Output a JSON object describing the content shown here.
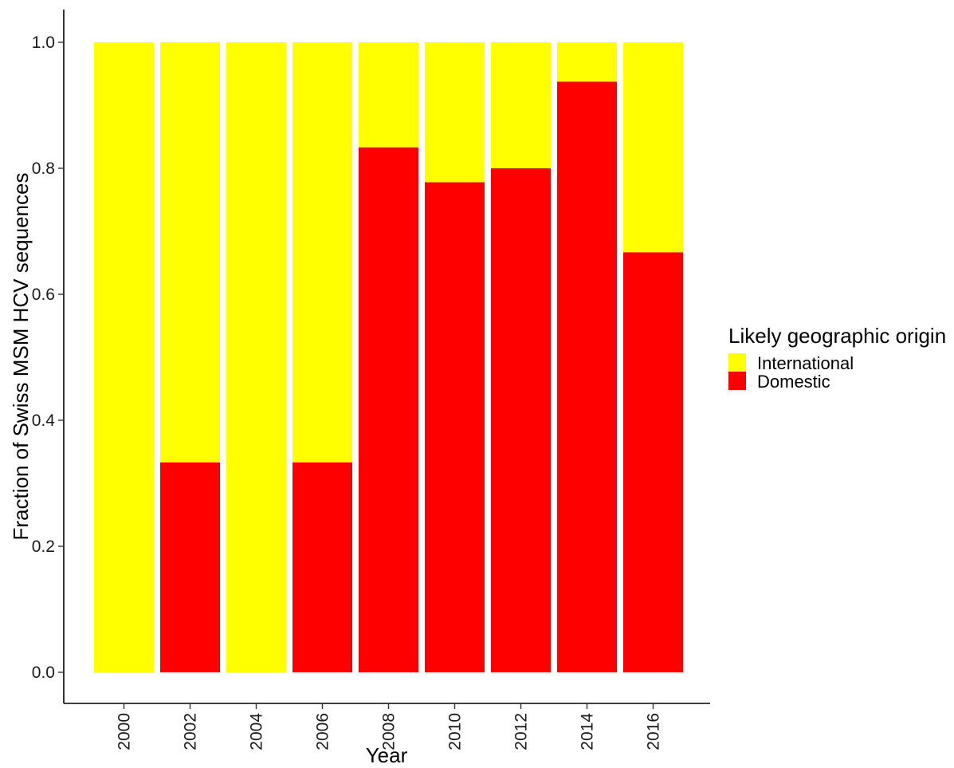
{
  "chart_data": {
    "type": "bar",
    "stacked": true,
    "categories": [
      "2000",
      "2002",
      "2004",
      "2006",
      "2008",
      "2010",
      "2012",
      "2014",
      "2016"
    ],
    "series": [
      {
        "name": "Domestic",
        "color": "#ff0000",
        "values": [
          0,
          0.3333,
          0,
          0.3333,
          0.8333,
          0.7778,
          0.8,
          0.9375,
          0.6667
        ]
      },
      {
        "name": "International",
        "color": "#ffff00",
        "values": [
          1,
          0.6667,
          1,
          0.6667,
          0.1667,
          0.2222,
          0.2,
          0.0625,
          0.3333
        ]
      }
    ],
    "xlabel": "Year",
    "ylabel": "Fraction of Swiss MSM HCV sequences",
    "ylim": [
      0,
      1.05
    ],
    "yticks": [
      "0.0",
      "0.2",
      "0.4",
      "0.6",
      "0.8",
      "1.0"
    ],
    "grid": false,
    "legend": {
      "title": "Likely geographic origin",
      "position": "right",
      "items": [
        {
          "label": "International",
          "color": "#ffff00"
        },
        {
          "label": "Domestic",
          "color": "#ff0000"
        }
      ]
    }
  }
}
